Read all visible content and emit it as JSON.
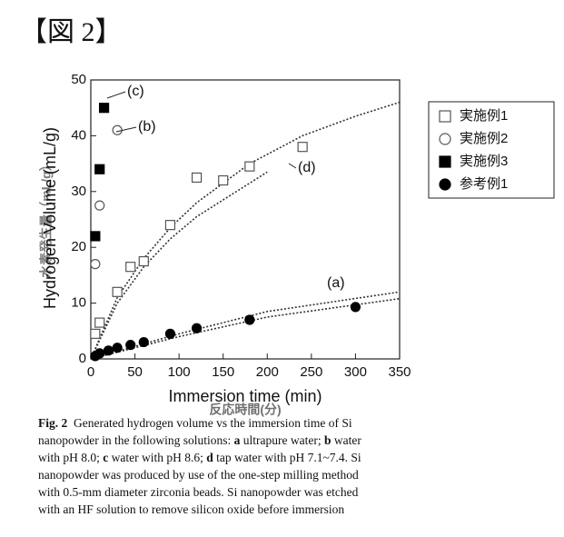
{
  "header": {
    "title": "【図 2】"
  },
  "chart_data": {
    "type": "scatter",
    "y_label": "Hydrogen Volume (mL/g)",
    "y_label_ja": "水素発生量（mL/g）",
    "x_label": "Immersion time (min)",
    "x_label_ja": "反応時間(分)",
    "xlim": [
      0,
      350
    ],
    "xticks": [
      0,
      50,
      100,
      150,
      200,
      250,
      300,
      350
    ],
    "ylim": [
      0,
      50
    ],
    "yticks": [
      0,
      10,
      20,
      30,
      40,
      50
    ],
    "legend": "right",
    "series": [
      {
        "name": "実施例1",
        "marker": "square-open",
        "color": "#555555",
        "x": [
          5,
          10,
          30,
          45,
          60,
          90,
          120,
          150,
          180,
          240
        ],
        "values": [
          4.5,
          6.5,
          12,
          16.5,
          17.5,
          24,
          32.5,
          32,
          34.5,
          38
        ]
      },
      {
        "name": "実施例2",
        "marker": "circle-open",
        "color": "#555555",
        "x": [
          5,
          10,
          30
        ],
        "values": [
          17,
          27.5,
          41
        ]
      },
      {
        "name": "実施例3",
        "marker": "square-filled",
        "color": "#000000",
        "x": [
          5,
          10,
          15
        ],
        "values": [
          22,
          34,
          45
        ]
      },
      {
        "name": "参考例1",
        "marker": "circle-filled",
        "color": "#000000",
        "x": [
          5,
          10,
          20,
          30,
          45,
          60,
          90,
          120,
          180,
          300
        ],
        "values": [
          0.5,
          1,
          1.5,
          2,
          2.5,
          3,
          4.5,
          5.5,
          7,
          9.3
        ]
      }
    ],
    "fits": [
      {
        "x": [
          0,
          30,
          60,
          90,
          120,
          180,
          240,
          300,
          350
        ],
        "values": [
          0,
          11,
          18,
          23.5,
          28,
          35,
          40,
          43.5,
          46
        ]
      },
      {
        "x": [
          0,
          30,
          60,
          90,
          120,
          180,
          200
        ],
        "values": [
          0,
          10,
          16.5,
          21.5,
          25.5,
          31.5,
          33.5
        ]
      },
      {
        "x": [
          0,
          100,
          200,
          350
        ],
        "values": [
          0,
          4.5,
          8.5,
          12
        ]
      },
      {
        "x": [
          0,
          100,
          200,
          350
        ],
        "values": [
          0,
          4,
          7.5,
          10.8
        ]
      }
    ],
    "annotations": [
      "(c)",
      "(b)",
      "(d)",
      "(a)"
    ]
  },
  "caption": [
    [
      {
        "text": "Fig. 2",
        "bold": true
      },
      {
        "text": "  Generated hydrogen volume vs the immersion time of Si",
        "bold": false
      }
    ],
    [
      {
        "text": "nanopowder in the following solutions: ",
        "bold": false
      },
      {
        "text": "a",
        "bold": true
      },
      {
        "text": " ultrapure water; ",
        "bold": false
      },
      {
        "text": "b",
        "bold": true
      },
      {
        "text": " water",
        "bold": false
      }
    ],
    [
      {
        "text": "with pH 8.0; ",
        "bold": false
      },
      {
        "text": "c",
        "bold": true
      },
      {
        "text": " water with pH 8.6; ",
        "bold": false
      },
      {
        "text": "d",
        "bold": true
      },
      {
        "text": " tap water with pH 7.1~7.4. Si",
        "bold": false
      }
    ],
    [
      {
        "text": "nanopowder was produced by use of the one-step milling method",
        "bold": false
      }
    ],
    [
      {
        "text": "with 0.5-mm diameter zirconia beads. Si nanopowder was etched",
        "bold": false
      }
    ],
    [
      {
        "text": "with an HF solution to remove silicon oxide before immersion",
        "bold": false
      }
    ]
  ]
}
